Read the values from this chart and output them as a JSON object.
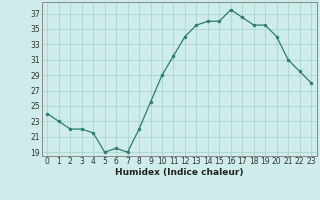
{
  "x": [
    0,
    1,
    2,
    3,
    4,
    5,
    6,
    7,
    8,
    9,
    10,
    11,
    12,
    13,
    14,
    15,
    16,
    17,
    18,
    19,
    20,
    21,
    22,
    23
  ],
  "y": [
    24,
    23,
    22,
    22,
    21.5,
    19,
    19.5,
    19,
    22,
    25.5,
    29,
    31.5,
    34,
    35.5,
    36,
    36,
    37.5,
    36.5,
    35.5,
    35.5,
    34,
    31,
    29.5,
    28
  ],
  "title": "",
  "xlabel": "Humidex (Indice chaleur)",
  "ylim": [
    18.5,
    38.5
  ],
  "xlim": [
    -0.5,
    23.5
  ],
  "yticks": [
    19,
    21,
    23,
    25,
    27,
    29,
    31,
    33,
    35,
    37
  ],
  "xticks": [
    0,
    1,
    2,
    3,
    4,
    5,
    6,
    7,
    8,
    9,
    10,
    11,
    12,
    13,
    14,
    15,
    16,
    17,
    18,
    19,
    20,
    21,
    22,
    23
  ],
  "line_color": "#2e7d6e",
  "marker_color": "#2e7d6e",
  "bg_color": "#ceecea",
  "grid_color": "#aed4d0",
  "axis_color": "#888888",
  "tick_fontsize": 5.5,
  "xlabel_fontsize": 6.5
}
